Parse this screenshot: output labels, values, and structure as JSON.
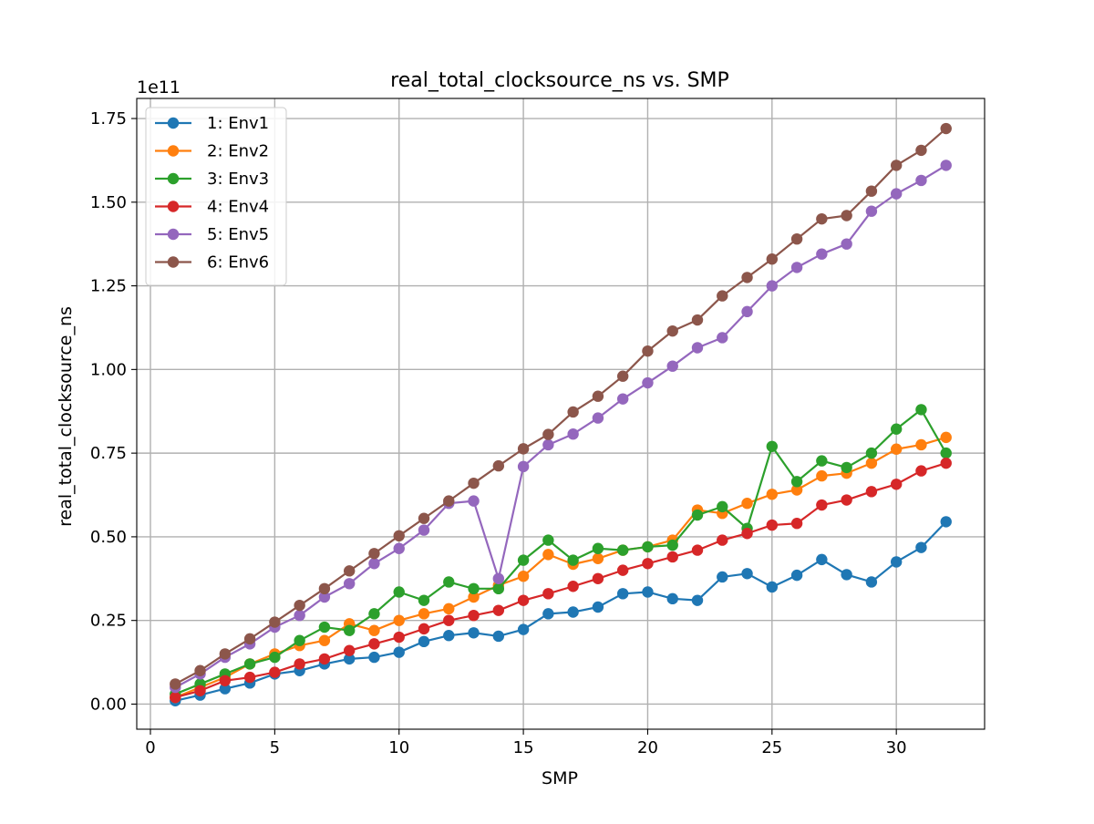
{
  "chart_data": {
    "type": "line",
    "title": "real_total_clocksource_ns vs. SMP",
    "xlabel": "SMP",
    "ylabel": "real_total_clocksource_ns",
    "y_offset_label": "1e11",
    "xlim": [
      -0.55,
      33.55
    ],
    "ylim": [
      -0.075,
      1.81
    ],
    "x_ticks": [
      0,
      5,
      10,
      15,
      20,
      25,
      30
    ],
    "y_ticks": [
      0.0,
      0.25,
      0.5,
      0.75,
      1.0,
      1.25,
      1.5,
      1.75
    ],
    "y_tick_labels": [
      "0.00",
      "0.25",
      "0.50",
      "0.75",
      "1.00",
      "1.25",
      "1.50",
      "1.75"
    ],
    "grid": true,
    "legend_position": "top-left",
    "x": [
      1,
      2,
      3,
      4,
      5,
      6,
      7,
      8,
      9,
      10,
      11,
      12,
      13,
      14,
      15,
      16,
      17,
      18,
      19,
      20,
      21,
      22,
      23,
      24,
      25,
      26,
      27,
      28,
      29,
      30,
      31,
      32
    ],
    "series": [
      {
        "name": "1: Env1",
        "color": "#1f77b4",
        "values": [
          0.01,
          0.027,
          0.046,
          0.063,
          0.09,
          0.1,
          0.12,
          0.135,
          0.14,
          0.155,
          0.187,
          0.205,
          0.213,
          0.203,
          0.223,
          0.27,
          0.275,
          0.29,
          0.33,
          0.335,
          0.315,
          0.31,
          0.38,
          0.39,
          0.35,
          0.385,
          0.432,
          0.387,
          0.365,
          0.425,
          0.468,
          0.545
        ]
      },
      {
        "name": "2: Env2",
        "color": "#ff7f0e",
        "values": [
          0.02,
          0.05,
          0.08,
          0.12,
          0.15,
          0.175,
          0.19,
          0.24,
          0.22,
          0.25,
          0.27,
          0.285,
          0.32,
          0.355,
          0.382,
          0.447,
          0.418,
          0.435,
          0.46,
          0.47,
          0.49,
          0.58,
          0.57,
          0.6,
          0.627,
          0.64,
          0.682,
          0.69,
          0.72,
          0.762,
          0.775,
          0.797
        ]
      },
      {
        "name": "3: Env3",
        "color": "#2ca02c",
        "values": [
          0.03,
          0.06,
          0.09,
          0.12,
          0.14,
          0.19,
          0.23,
          0.22,
          0.27,
          0.335,
          0.31,
          0.365,
          0.345,
          0.345,
          0.43,
          0.49,
          0.43,
          0.465,
          0.46,
          0.47,
          0.475,
          0.565,
          0.59,
          0.525,
          0.77,
          0.665,
          0.727,
          0.707,
          0.75,
          0.822,
          0.88,
          0.75
        ]
      },
      {
        "name": "4: Env4",
        "color": "#d62728",
        "values": [
          0.02,
          0.04,
          0.07,
          0.08,
          0.095,
          0.12,
          0.135,
          0.16,
          0.18,
          0.2,
          0.225,
          0.25,
          0.265,
          0.28,
          0.31,
          0.33,
          0.352,
          0.375,
          0.4,
          0.42,
          0.44,
          0.46,
          0.49,
          0.51,
          0.535,
          0.54,
          0.595,
          0.61,
          0.635,
          0.657,
          0.697,
          0.72
        ]
      },
      {
        "name": "5: Env5",
        "color": "#9467bd",
        "values": [
          0.05,
          0.09,
          0.14,
          0.18,
          0.23,
          0.265,
          0.32,
          0.36,
          0.42,
          0.465,
          0.52,
          0.6,
          0.607,
          0.375,
          0.71,
          0.775,
          0.807,
          0.855,
          0.912,
          0.96,
          1.01,
          1.065,
          1.095,
          1.173,
          1.25,
          1.305,
          1.345,
          1.375,
          1.473,
          1.525,
          1.565,
          1.61
        ]
      },
      {
        "name": "6: Env6",
        "color": "#8c564b",
        "values": [
          0.06,
          0.1,
          0.15,
          0.195,
          0.245,
          0.295,
          0.345,
          0.398,
          0.45,
          0.503,
          0.555,
          0.607,
          0.66,
          0.712,
          0.763,
          0.806,
          0.873,
          0.92,
          0.98,
          1.055,
          1.115,
          1.148,
          1.22,
          1.275,
          1.33,
          1.39,
          1.45,
          1.46,
          1.533,
          1.61,
          1.655,
          1.72
        ]
      }
    ]
  }
}
